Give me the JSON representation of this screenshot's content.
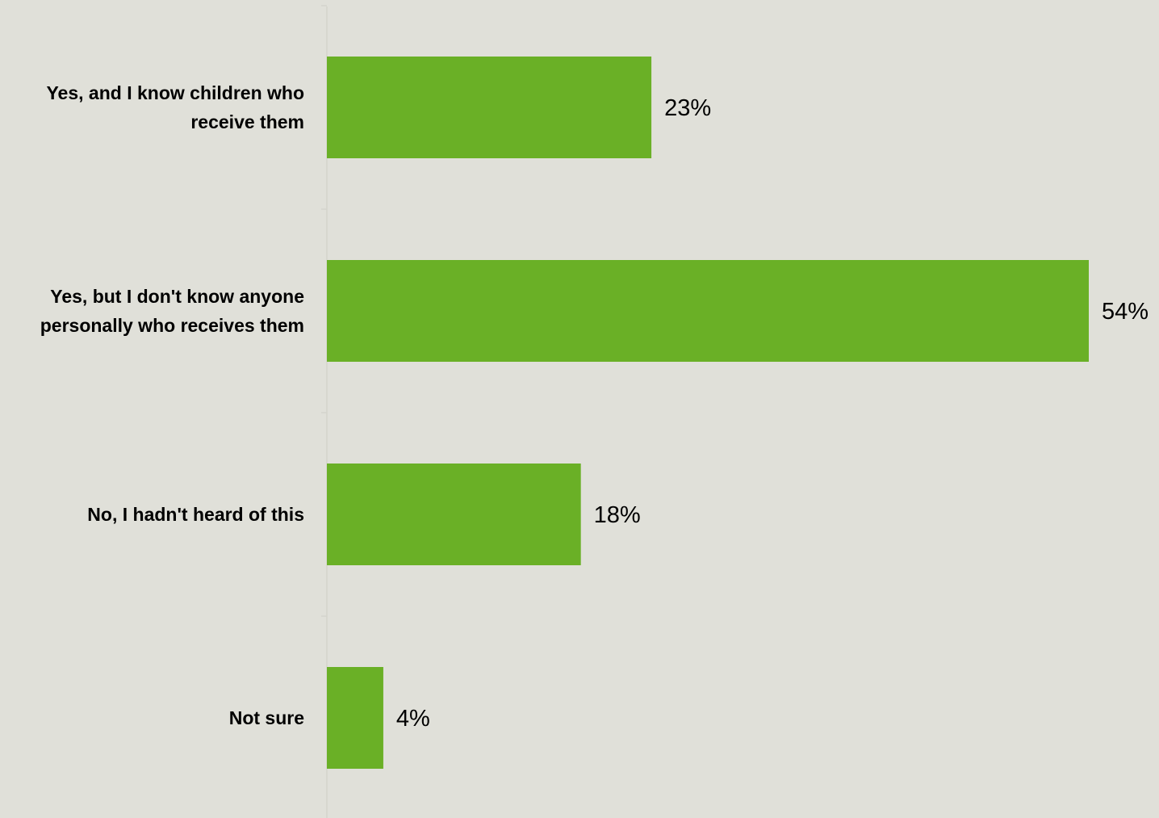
{
  "chart_data": {
    "type": "bar",
    "orientation": "horizontal",
    "categories": [
      [
        "Yes, and I know children who",
        "receive them"
      ],
      [
        "Yes, but I don't know anyone",
        "personally who receives them"
      ],
      [
        "No, I hadn't heard of this"
      ],
      [
        "Not sure"
      ]
    ],
    "values": [
      23,
      54,
      18,
      4
    ],
    "value_labels": [
      "23%",
      "54%",
      "18%",
      "4%"
    ],
    "unit": "%",
    "xlim": [
      0,
      54
    ],
    "grid": false,
    "legend": "none",
    "bar_color": "#6ab026",
    "axis_color": "#d4d4cc"
  },
  "background_color": "#e0e0d9"
}
